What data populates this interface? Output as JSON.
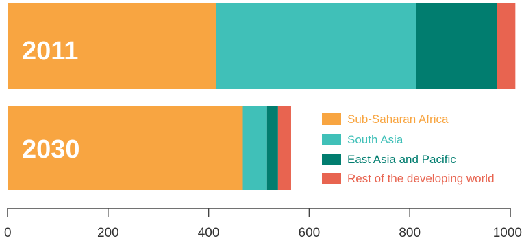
{
  "chart_data": {
    "type": "bar",
    "orientation": "horizontal",
    "stacked": true,
    "categories": [
      "2011",
      "2030"
    ],
    "series": [
      {
        "name": "Sub-Saharan Africa",
        "color": "#f8a541",
        "values": [
          415,
          468
        ]
      },
      {
        "name": "South Asia",
        "color": "#40c0b8",
        "values": [
          397,
          48
        ]
      },
      {
        "name": "East Asia and Pacific",
        "color": "#017d6f",
        "values": [
          161,
          22
        ]
      },
      {
        "name": "Rest of the developing world",
        "color": "#e86450",
        "values": [
          37,
          26
        ]
      }
    ],
    "xlim": [
      0,
      1000
    ],
    "xticks": [
      "0",
      "200",
      "400",
      "600",
      "800",
      "1000"
    ],
    "legend_position": "right of 2030 bar",
    "grid": false,
    "title": "",
    "xlabel": "",
    "ylabel": ""
  }
}
